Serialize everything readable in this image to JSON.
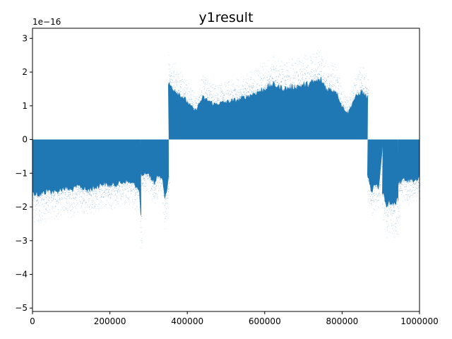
{
  "chart_data": {
    "type": "scatter",
    "title": "y1result",
    "xlabel": "",
    "ylabel": "",
    "y_offset_label": "1e−16",
    "xlim": [
      0,
      1000000
    ],
    "ylim": [
      -5.1,
      3.3
    ],
    "x_ticks": [
      0,
      200000,
      400000,
      600000,
      800000,
      1000000
    ],
    "x_tick_labels": [
      "0",
      "200000",
      "400000",
      "600000",
      "800000",
      "1000000"
    ],
    "y_ticks": [
      -5,
      -4,
      -3,
      -2,
      -1,
      0,
      1,
      2,
      3
    ],
    "y_tick_labels": [
      "−5",
      "−4",
      "−3",
      "−2",
      "−1",
      "0",
      "1",
      "2",
      "3"
    ],
    "grid": false,
    "color": "#1f77b4",
    "segments": [
      {
        "x": [
          0,
          280000
        ],
        "sign": -1,
        "lower_envelope": [
          [
            0,
            -2.4
          ],
          [
            20000,
            -2.5
          ],
          [
            40000,
            -2.3
          ],
          [
            60000,
            -2.4
          ],
          [
            80000,
            -2.2
          ],
          [
            100000,
            -2.3
          ],
          [
            120000,
            -2.1
          ],
          [
            140000,
            -2.3
          ],
          [
            160000,
            -2.2
          ],
          [
            180000,
            -2.0
          ],
          [
            200000,
            -2.1
          ],
          [
            220000,
            -2.0
          ],
          [
            240000,
            -1.9
          ],
          [
            260000,
            -2.0
          ],
          [
            275000,
            -2.2
          ],
          [
            280000,
            -3.6
          ]
        ]
      },
      {
        "x": [
          280000,
          352000
        ],
        "sign": -1,
        "lower_envelope": [
          [
            280000,
            -1.6
          ],
          [
            295000,
            -1.5
          ],
          [
            305000,
            -1.7
          ],
          [
            315000,
            -2.0
          ],
          [
            325000,
            -1.6
          ],
          [
            335000,
            -1.8
          ],
          [
            342000,
            -2.8
          ],
          [
            348000,
            -2.2
          ],
          [
            352000,
            -1.6
          ]
        ]
      },
      {
        "x": [
          352000,
          866000
        ],
        "sign": 1,
        "upper_envelope": [
          [
            352000,
            2.5
          ],
          [
            370000,
            2.2
          ],
          [
            390000,
            1.9
          ],
          [
            420000,
            1.3
          ],
          [
            440000,
            1.9
          ],
          [
            470000,
            1.6
          ],
          [
            500000,
            1.7
          ],
          [
            530000,
            1.8
          ],
          [
            560000,
            2.0
          ],
          [
            590000,
            2.2
          ],
          [
            620000,
            2.5
          ],
          [
            650000,
            2.3
          ],
          [
            680000,
            2.4
          ],
          [
            710000,
            2.5
          ],
          [
            745000,
            2.7
          ],
          [
            760000,
            2.3
          ],
          [
            785000,
            2.2
          ],
          [
            800000,
            1.5
          ],
          [
            815000,
            1.2
          ],
          [
            830000,
            1.8
          ],
          [
            850000,
            2.2
          ],
          [
            866000,
            1.9
          ]
        ]
      },
      {
        "x": [
          866000,
          905000
        ],
        "sign": -1,
        "lower_envelope": [
          [
            866000,
            -1.6
          ],
          [
            875000,
            -2.4
          ],
          [
            885000,
            -2.0
          ],
          [
            895000,
            -2.2
          ],
          [
            905000,
            -0.3
          ]
        ]
      },
      {
        "x": [
          905000,
          945000
        ],
        "sign": -1,
        "lower_envelope": [
          [
            905000,
            -2.4
          ],
          [
            915000,
            -3.0
          ],
          [
            925000,
            -2.8
          ],
          [
            935000,
            -3.0
          ],
          [
            945000,
            -2.7
          ]
        ]
      },
      {
        "x": [
          945000,
          1000000
        ],
        "sign": -1,
        "lower_envelope": [
          [
            945000,
            -2.0
          ],
          [
            960000,
            -1.8
          ],
          [
            975000,
            -1.9
          ],
          [
            990000,
            -1.8
          ],
          [
            1000000,
            -1.7
          ]
        ]
      }
    ]
  }
}
